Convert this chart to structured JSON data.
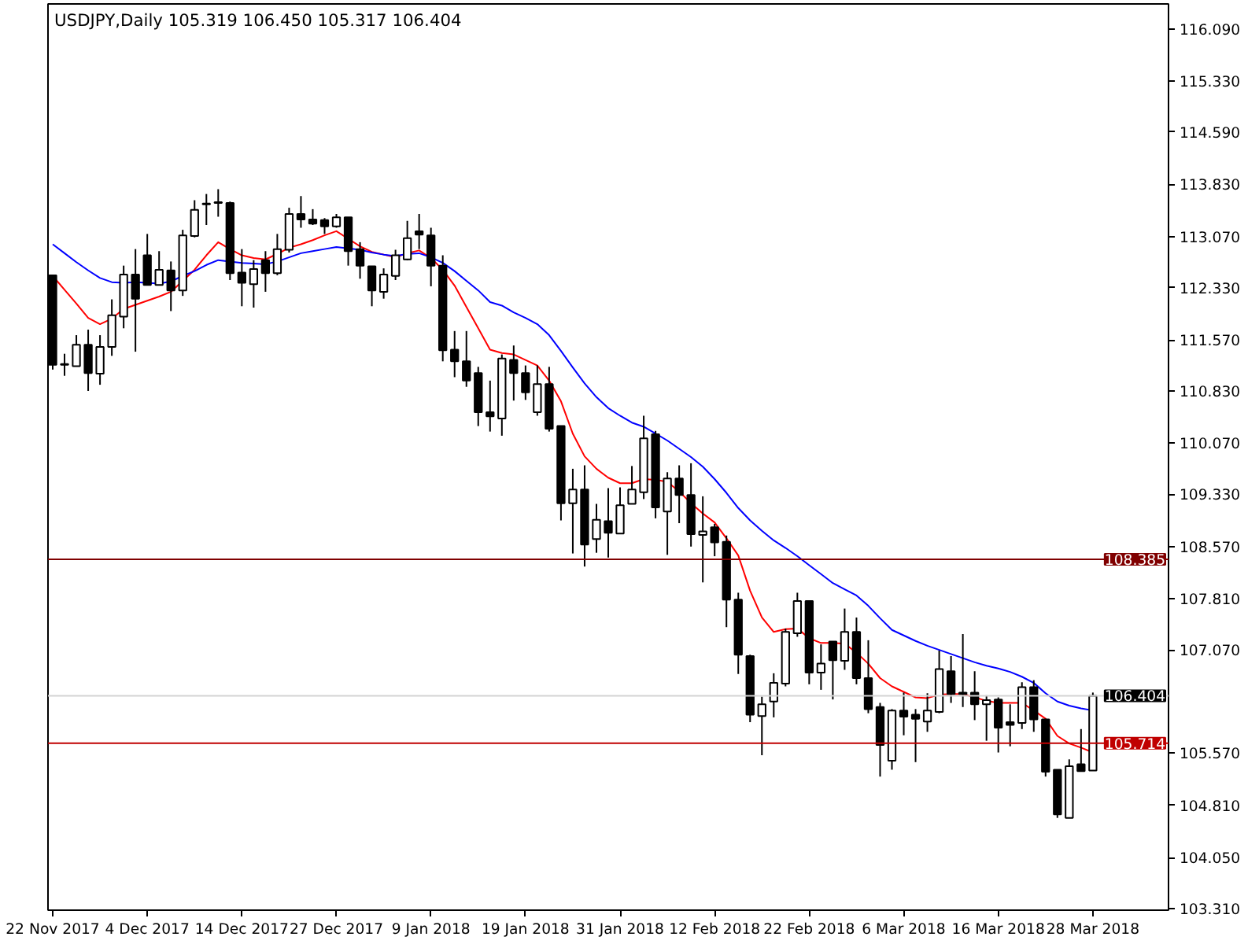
{
  "chart_data": {
    "type": "candlestick",
    "title": "USDJPY,Daily  105.319 106.450 105.317 106.404",
    "categories": [
      "22 Nov 2017",
      null,
      null,
      null,
      null,
      null,
      null,
      null,
      "4 Dec 2017",
      null,
      null,
      null,
      null,
      null,
      null,
      null,
      "14 Dec 2017",
      null,
      null,
      null,
      null,
      null,
      null,
      null,
      "27 Dec 2017",
      null,
      null,
      null,
      null,
      null,
      null,
      null,
      "9 Jan 2018",
      null,
      null,
      null,
      null,
      null,
      null,
      null,
      "19 Jan 2018",
      null,
      null,
      null,
      null,
      null,
      null,
      null,
      "31 Jan 2018",
      null,
      null,
      null,
      null,
      null,
      null,
      null,
      "12 Feb 2018",
      null,
      null,
      null,
      null,
      null,
      null,
      null,
      "22 Feb 2018",
      null,
      null,
      null,
      null,
      null,
      null,
      null,
      "6 Mar 2018",
      null,
      null,
      null,
      null,
      null,
      null,
      null,
      "16 Mar 2018",
      null,
      null,
      null,
      null,
      null,
      null,
      null,
      "28 Mar 2018"
    ],
    "ohlc": [
      [
        112.51,
        112.51,
        111.14,
        111.21
      ],
      [
        111.22,
        111.37,
        111.05,
        111.21
      ],
      [
        111.19,
        111.64,
        111.19,
        111.5
      ],
      [
        111.5,
        111.72,
        110.83,
        111.09
      ],
      [
        111.08,
        111.64,
        110.92,
        111.47
      ],
      [
        111.47,
        112.16,
        111.34,
        111.93
      ],
      [
        111.91,
        112.65,
        111.74,
        112.52
      ],
      [
        112.52,
        112.89,
        111.4,
        112.17
      ],
      [
        112.8,
        113.11,
        112.37,
        112.37
      ],
      [
        112.37,
        112.86,
        112.37,
        112.59
      ],
      [
        112.58,
        112.71,
        111.99,
        112.29
      ],
      [
        112.29,
        113.17,
        112.21,
        113.09
      ],
      [
        113.08,
        113.6,
        113.06,
        113.46
      ],
      [
        113.54,
        113.69,
        113.24,
        113.55
      ],
      [
        113.57,
        113.76,
        113.36,
        113.56
      ],
      [
        113.56,
        113.58,
        112.44,
        112.54
      ],
      [
        112.55,
        112.89,
        112.06,
        112.4
      ],
      [
        112.38,
        112.73,
        112.04,
        112.6
      ],
      [
        112.73,
        112.86,
        112.27,
        112.54
      ],
      [
        112.54,
        113.11,
        112.51,
        112.89
      ],
      [
        112.88,
        113.49,
        112.84,
        113.4
      ],
      [
        113.4,
        113.66,
        113.2,
        113.32
      ],
      [
        113.32,
        113.47,
        113.24,
        113.26
      ],
      [
        113.31,
        113.34,
        113.11,
        113.22
      ],
      [
        113.22,
        113.4,
        113.2,
        113.35
      ],
      [
        113.35,
        113.35,
        112.65,
        112.86
      ],
      [
        112.89,
        112.99,
        112.46,
        112.65
      ],
      [
        112.64,
        112.64,
        112.06,
        112.29
      ],
      [
        112.27,
        112.61,
        112.17,
        112.52
      ],
      [
        112.5,
        112.88,
        112.44,
        112.8
      ],
      [
        112.74,
        113.3,
        112.73,
        113.05
      ],
      [
        113.15,
        113.4,
        112.89,
        113.1
      ],
      [
        113.09,
        113.2,
        112.35,
        112.65
      ],
      [
        112.65,
        112.8,
        111.26,
        111.42
      ],
      [
        111.43,
        111.7,
        111.03,
        111.26
      ],
      [
        111.26,
        111.7,
        110.89,
        110.98
      ],
      [
        111.09,
        111.18,
        110.32,
        110.52
      ],
      [
        110.52,
        110.98,
        110.24,
        110.46
      ],
      [
        110.43,
        111.36,
        110.18,
        111.3
      ],
      [
        111.28,
        111.49,
        110.69,
        111.09
      ],
      [
        111.09,
        111.2,
        110.7,
        110.81
      ],
      [
        110.52,
        111.2,
        110.47,
        110.93
      ],
      [
        110.93,
        111.18,
        110.24,
        110.28
      ],
      [
        110.32,
        110.32,
        108.95,
        109.2
      ],
      [
        109.2,
        109.7,
        108.47,
        109.4
      ],
      [
        109.4,
        109.75,
        108.28,
        108.6
      ],
      [
        108.68,
        109.19,
        108.48,
        108.96
      ],
      [
        108.94,
        109.42,
        108.41,
        108.77
      ],
      [
        108.76,
        109.43,
        108.76,
        109.17
      ],
      [
        109.19,
        109.74,
        109.19,
        109.4
      ],
      [
        109.36,
        110.47,
        109.26,
        110.14
      ],
      [
        110.2,
        110.25,
        108.98,
        109.14
      ],
      [
        109.08,
        109.65,
        108.45,
        109.56
      ],
      [
        109.56,
        109.75,
        108.91,
        109.32
      ],
      [
        109.32,
        109.78,
        108.57,
        108.75
      ],
      [
        108.74,
        109.3,
        108.05,
        108.79
      ],
      [
        108.85,
        108.9,
        108.43,
        108.63
      ],
      [
        108.64,
        108.73,
        107.4,
        107.8
      ],
      [
        107.8,
        107.9,
        106.72,
        107.0
      ],
      [
        106.98,
        107.0,
        106.02,
        106.13
      ],
      [
        106.11,
        106.39,
        105.54,
        106.28
      ],
      [
        106.32,
        106.73,
        106.09,
        106.59
      ],
      [
        106.58,
        107.38,
        106.54,
        107.33
      ],
      [
        107.31,
        107.9,
        107.26,
        107.78
      ],
      [
        107.78,
        107.78,
        106.57,
        106.74
      ],
      [
        106.74,
        107.15,
        106.49,
        106.87
      ],
      [
        107.19,
        107.19,
        106.35,
        106.92
      ],
      [
        106.91,
        107.67,
        106.78,
        107.33
      ],
      [
        107.33,
        107.54,
        106.57,
        106.66
      ],
      [
        106.66,
        107.21,
        106.15,
        106.21
      ],
      [
        106.24,
        106.3,
        105.23,
        105.69
      ],
      [
        105.46,
        106.21,
        105.33,
        106.19
      ],
      [
        106.19,
        106.45,
        105.83,
        106.1
      ],
      [
        106.13,
        106.21,
        105.44,
        106.07
      ],
      [
        106.03,
        106.44,
        105.88,
        106.19
      ],
      [
        106.17,
        107.06,
        106.15,
        106.79
      ],
      [
        106.76,
        106.98,
        106.3,
        106.43
      ],
      [
        106.45,
        107.3,
        106.24,
        106.43
      ],
      [
        106.45,
        106.76,
        106.05,
        106.28
      ],
      [
        106.28,
        106.41,
        105.75,
        106.34
      ],
      [
        106.35,
        106.38,
        105.58,
        105.94
      ],
      [
        106.02,
        106.28,
        105.67,
        105.98
      ],
      [
        106.01,
        106.6,
        105.92,
        106.53
      ],
      [
        106.53,
        106.63,
        105.88,
        106.06
      ],
      [
        106.06,
        106.07,
        105.23,
        105.3
      ],
      [
        105.33,
        105.33,
        104.63,
        104.68
      ],
      [
        104.63,
        105.48,
        104.63,
        105.38
      ],
      [
        105.41,
        105.92,
        105.31,
        105.31
      ],
      [
        105.319,
        106.45,
        105.317,
        106.404
      ]
    ],
    "series": [
      {
        "type": "line",
        "color": "#ff0000",
        "values": [
          112.5,
          112.3,
          112.1,
          111.89,
          111.8,
          111.88,
          112.02,
          112.08,
          112.14,
          112.2,
          112.27,
          112.43,
          112.59,
          112.8,
          112.99,
          112.89,
          112.8,
          112.76,
          112.74,
          112.82,
          112.91,
          112.96,
          113.02,
          113.09,
          113.15,
          113.04,
          112.93,
          112.85,
          112.81,
          112.77,
          112.83,
          112.87,
          112.76,
          112.59,
          112.36,
          112.05,
          111.74,
          111.43,
          111.38,
          111.36,
          111.28,
          111.2,
          110.98,
          110.68,
          110.21,
          109.88,
          109.7,
          109.57,
          109.49,
          109.49,
          109.55,
          109.54,
          109.51,
          109.37,
          109.2,
          109.05,
          108.92,
          108.69,
          108.44,
          107.93,
          107.54,
          107.33,
          107.37,
          107.38,
          107.24,
          107.17,
          107.17,
          107.16,
          107.03,
          106.87,
          106.66,
          106.54,
          106.46,
          106.38,
          106.37,
          106.42,
          106.43,
          106.43,
          106.38,
          106.33,
          106.3,
          106.3,
          106.3,
          106.19,
          106.07,
          105.82,
          105.71,
          105.65,
          105.58
        ]
      },
      {
        "type": "line",
        "color": "#0000ff",
        "values": [
          112.96,
          112.83,
          112.7,
          112.58,
          112.47,
          112.41,
          112.4,
          112.41,
          112.4,
          112.39,
          112.42,
          112.5,
          112.57,
          112.66,
          112.73,
          112.71,
          112.69,
          112.68,
          112.67,
          112.71,
          112.77,
          112.83,
          112.86,
          112.89,
          112.92,
          112.9,
          112.88,
          112.84,
          112.81,
          112.79,
          112.82,
          112.83,
          112.77,
          112.69,
          112.57,
          112.43,
          112.29,
          112.12,
          112.07,
          111.97,
          111.89,
          111.8,
          111.64,
          111.41,
          111.17,
          110.94,
          110.74,
          110.58,
          110.47,
          110.37,
          110.31,
          110.21,
          110.11,
          109.99,
          109.87,
          109.73,
          109.55,
          109.35,
          109.13,
          108.95,
          108.8,
          108.66,
          108.55,
          108.43,
          108.3,
          108.17,
          108.04,
          107.95,
          107.86,
          107.71,
          107.53,
          107.36,
          107.28,
          107.2,
          107.13,
          107.07,
          107.01,
          106.95,
          106.89,
          106.84,
          106.8,
          106.75,
          106.68,
          106.59,
          106.44,
          106.32,
          106.26,
          106.22,
          106.19
        ]
      }
    ],
    "ylim": [
      103.29,
      116.45
    ],
    "yticks": [
      {
        "value": 103.31,
        "label": "103.310"
      },
      {
        "value": 104.05,
        "label": "104.050"
      },
      {
        "value": 104.81,
        "label": "104.810"
      },
      {
        "value": 105.57,
        "label": "105.570"
      },
      {
        "value": 107.07,
        "label": "107.070"
      },
      {
        "value": 107.81,
        "label": "107.810"
      },
      {
        "value": 108.57,
        "label": "108.570"
      },
      {
        "value": 109.33,
        "label": "109.330"
      },
      {
        "value": 110.07,
        "label": "110.070"
      },
      {
        "value": 110.83,
        "label": "110.830"
      },
      {
        "value": 111.57,
        "label": "111.570"
      },
      {
        "value": 112.33,
        "label": "112.330"
      },
      {
        "value": 113.07,
        "label": "113.070"
      },
      {
        "value": 113.83,
        "label": "113.830"
      },
      {
        "value": 114.59,
        "label": "114.590"
      },
      {
        "value": 115.33,
        "label": "115.330"
      },
      {
        "value": 116.09,
        "label": "116.090"
      }
    ],
    "ref_lines": [
      {
        "axis": "y",
        "value": 108.385,
        "label": "108.385",
        "color": "#800000"
      },
      {
        "axis": "y",
        "value": 105.714,
        "label": "105.714",
        "color": "#c00000"
      },
      {
        "axis": "y",
        "value": 106.404,
        "label": "106.404",
        "color": "#d3d3d3"
      }
    ],
    "grid": false
  }
}
